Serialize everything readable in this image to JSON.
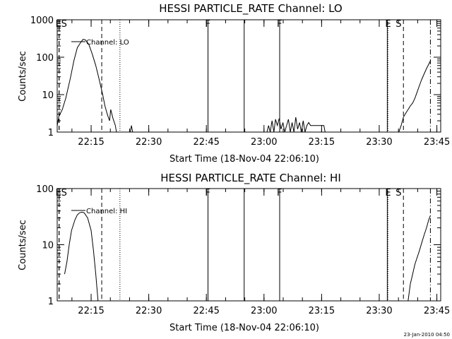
{
  "chart_data": [
    {
      "type": "line",
      "title": "HESSI PARTICLE_RATE Channel: LO",
      "xlabel": "Start Time (18-Nov-04 22:06:10)",
      "ylabel": "Counts/sec",
      "yscale": "log",
      "ylim": [
        1,
        1000
      ],
      "xlim": [
        22.1028,
        23.7667
      ],
      "x_unit": "hours UT",
      "xtick_labels": [
        "22:15",
        "22:30",
        "22:45",
        "23:00",
        "23:15",
        "23:30",
        "23:45"
      ],
      "ytick_labels": [
        "1",
        "10",
        "100",
        "1000"
      ],
      "legend": "Channel: LO",
      "series": [
        {
          "name": "Channel: LO",
          "segments": [
            [
              [
                22.103,
                1.5
              ],
              [
                22.11,
                2.6
              ],
              [
                22.125,
                4
              ],
              [
                22.14,
                8
              ],
              [
                22.16,
                28
              ],
              [
                22.175,
                80
              ],
              [
                22.19,
                180
              ],
              [
                22.205,
                250
              ],
              [
                22.215,
                300
              ],
              [
                22.225,
                290
              ],
              [
                22.24,
                220
              ],
              [
                22.255,
                120
              ],
              [
                22.27,
                60
              ],
              [
                22.285,
                25
              ],
              [
                22.3,
                10
              ],
              [
                22.31,
                5
              ],
              [
                22.32,
                3
              ],
              [
                22.33,
                2
              ],
              [
                22.335,
                4
              ],
              [
                22.345,
                2.3
              ],
              [
                22.355,
                1.5
              ],
              [
                22.36,
                1
              ]
            ],
            [
              [
                22.42,
                1
              ],
              [
                22.425,
                1.5
              ],
              [
                22.43,
                1
              ]
            ],
            [
              [
                23.013,
                1
              ],
              [
                23.02,
                1.5
              ],
              [
                23.027,
                1
              ],
              [
                23.035,
                2
              ],
              [
                23.043,
                1
              ],
              [
                23.05,
                2.2
              ],
              [
                23.058,
                1.5
              ],
              [
                23.066,
                2.3
              ],
              [
                23.074,
                1.2
              ],
              [
                23.082,
                1.8
              ],
              [
                23.09,
                1
              ],
              [
                23.098,
                1.5
              ],
              [
                23.106,
                2.2
              ],
              [
                23.114,
                1
              ],
              [
                23.122,
                1.8
              ],
              [
                23.13,
                1
              ],
              [
                23.138,
                2.5
              ],
              [
                23.146,
                1.2
              ],
              [
                23.154,
                1.8
              ],
              [
                23.162,
                1
              ],
              [
                23.17,
                2
              ],
              [
                23.178,
                1
              ],
              [
                23.186,
                1.5
              ],
              [
                23.194,
                1.8
              ],
              [
                23.202,
                1.5
              ],
              [
                23.22,
                1.5
              ],
              [
                23.24,
                1.5
              ],
              [
                23.26,
                1.5
              ],
              [
                23.265,
                1
              ]
            ],
            [
              [
                23.585,
                1
              ],
              [
                23.595,
                1.5
              ],
              [
                23.605,
                2.5
              ],
              [
                23.615,
                3.2
              ],
              [
                23.625,
                4
              ],
              [
                23.635,
                5
              ],
              [
                23.645,
                6
              ],
              [
                23.655,
                8
              ],
              [
                23.665,
                12
              ],
              [
                23.675,
                18
              ],
              [
                23.685,
                26
              ],
              [
                23.695,
                36
              ],
              [
                23.705,
                50
              ],
              [
                23.715,
                65
              ],
              [
                23.722,
                80
              ]
            ]
          ]
        }
      ],
      "markers": [
        {
          "label": "E",
          "x": 22.111,
          "style": "dashed"
        },
        {
          "label": "S",
          "x": 22.111,
          "style": "dashed"
        },
        {
          "label": "",
          "x": 22.296,
          "style": "dashed"
        },
        {
          "label": "",
          "x": 22.375,
          "style": "dotted"
        },
        {
          "label": "F",
          "x": 22.757,
          "style": "solid"
        },
        {
          "label": "",
          "x": 22.914,
          "style": "solid"
        },
        {
          "label": "F",
          "x": 23.068,
          "style": "solid"
        },
        {
          "label": "",
          "x": 23.535,
          "style": "solid"
        },
        {
          "label": "E",
          "x": 23.538,
          "style": "dotted"
        },
        {
          "label": "S",
          "x": 23.605,
          "style": "dashed"
        },
        {
          "label": "",
          "x": 23.722,
          "style": "dashdot"
        }
      ]
    },
    {
      "type": "line",
      "title": "HESSI PARTICLE_RATE Channel: HI",
      "xlabel": "Start Time (18-Nov-04 22:06:10)",
      "ylabel": "Counts/sec",
      "yscale": "log",
      "ylim": [
        1,
        100
      ],
      "xlim": [
        22.1028,
        23.7667
      ],
      "x_unit": "hours UT",
      "xtick_labels": [
        "22:15",
        "22:30",
        "22:45",
        "23:00",
        "23:15",
        "23:30",
        "23:45"
      ],
      "ytick_labels": [
        "1",
        "10",
        "100"
      ],
      "legend": "Channel: HI",
      "series": [
        {
          "name": "Channel: HI",
          "segments": [
            [
              [
                22.135,
                3
              ],
              [
                22.145,
                5
              ],
              [
                22.155,
                10
              ],
              [
                22.165,
                18
              ],
              [
                22.18,
                28
              ],
              [
                22.19,
                34
              ],
              [
                22.2,
                37
              ],
              [
                22.21,
                38
              ],
              [
                22.22,
                37
              ],
              [
                22.235,
                30
              ],
              [
                22.25,
                18
              ],
              [
                22.26,
                8
              ],
              [
                22.27,
                3
              ],
              [
                22.28,
                1
              ]
            ],
            [
              [
                23.625,
                1
              ],
              [
                23.635,
                2
              ],
              [
                23.645,
                3
              ],
              [
                23.655,
                4.5
              ],
              [
                23.665,
                6
              ],
              [
                23.675,
                8
              ],
              [
                23.685,
                11
              ],
              [
                23.695,
                15
              ],
              [
                23.705,
                20
              ],
              [
                23.715,
                28
              ],
              [
                23.722,
                33
              ]
            ]
          ]
        }
      ],
      "markers": [
        {
          "label": "E",
          "x": 22.111,
          "style": "dashed"
        },
        {
          "label": "S",
          "x": 22.111,
          "style": "dashed"
        },
        {
          "label": "",
          "x": 22.296,
          "style": "dashed"
        },
        {
          "label": "",
          "x": 22.375,
          "style": "dotted"
        },
        {
          "label": "F",
          "x": 22.757,
          "style": "solid"
        },
        {
          "label": "",
          "x": 22.914,
          "style": "solid"
        },
        {
          "label": "F",
          "x": 23.068,
          "style": "solid"
        },
        {
          "label": "",
          "x": 23.535,
          "style": "solid"
        },
        {
          "label": "E",
          "x": 23.538,
          "style": "dotted"
        },
        {
          "label": "S",
          "x": 23.605,
          "style": "dashed"
        },
        {
          "label": "",
          "x": 23.722,
          "style": "dashdot"
        }
      ]
    }
  ],
  "footer": {
    "timestamp": "23-Jan-2010 04:50"
  }
}
